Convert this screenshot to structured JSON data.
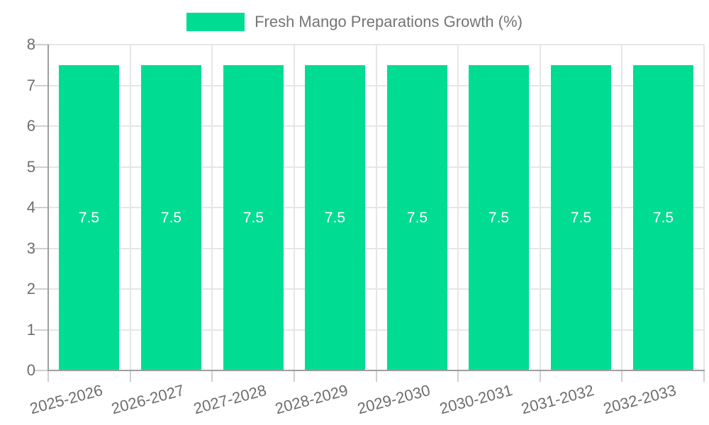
{
  "chart_data": {
    "type": "bar",
    "title": "",
    "series_name": "Fresh Mango Preparations Growth (%)",
    "categories": [
      "2025-2026",
      "2026-2027",
      "2027-2028",
      "2028-2029",
      "2029-2030",
      "2030-2031",
      "2031-2032",
      "2032-2033"
    ],
    "values": [
      7.5,
      7.5,
      7.5,
      7.5,
      7.5,
      7.5,
      7.5,
      7.5
    ],
    "value_labels": [
      "7.5",
      "7.5",
      "7.5",
      "7.5",
      "7.5",
      "7.5",
      "7.5",
      "7.5"
    ],
    "xlabel": "",
    "ylabel": "",
    "ylim": [
      0,
      8
    ],
    "yticks": [
      "0",
      "1",
      "2",
      "3",
      "4",
      "5",
      "6",
      "7",
      "8"
    ],
    "grid": true,
    "legend_position": "top",
    "x_tick_rotation_deg": -15
  },
  "colors": {
    "bar": "#00DC92",
    "value_label": "#FFFFFF",
    "axis_text": "#6E6E6E",
    "legend_text": "#757575",
    "gridline": "#E6E6E6",
    "tick": "#CFCFCF",
    "axis_line": "#9E9E9E",
    "background": "#FFFFFF"
  }
}
